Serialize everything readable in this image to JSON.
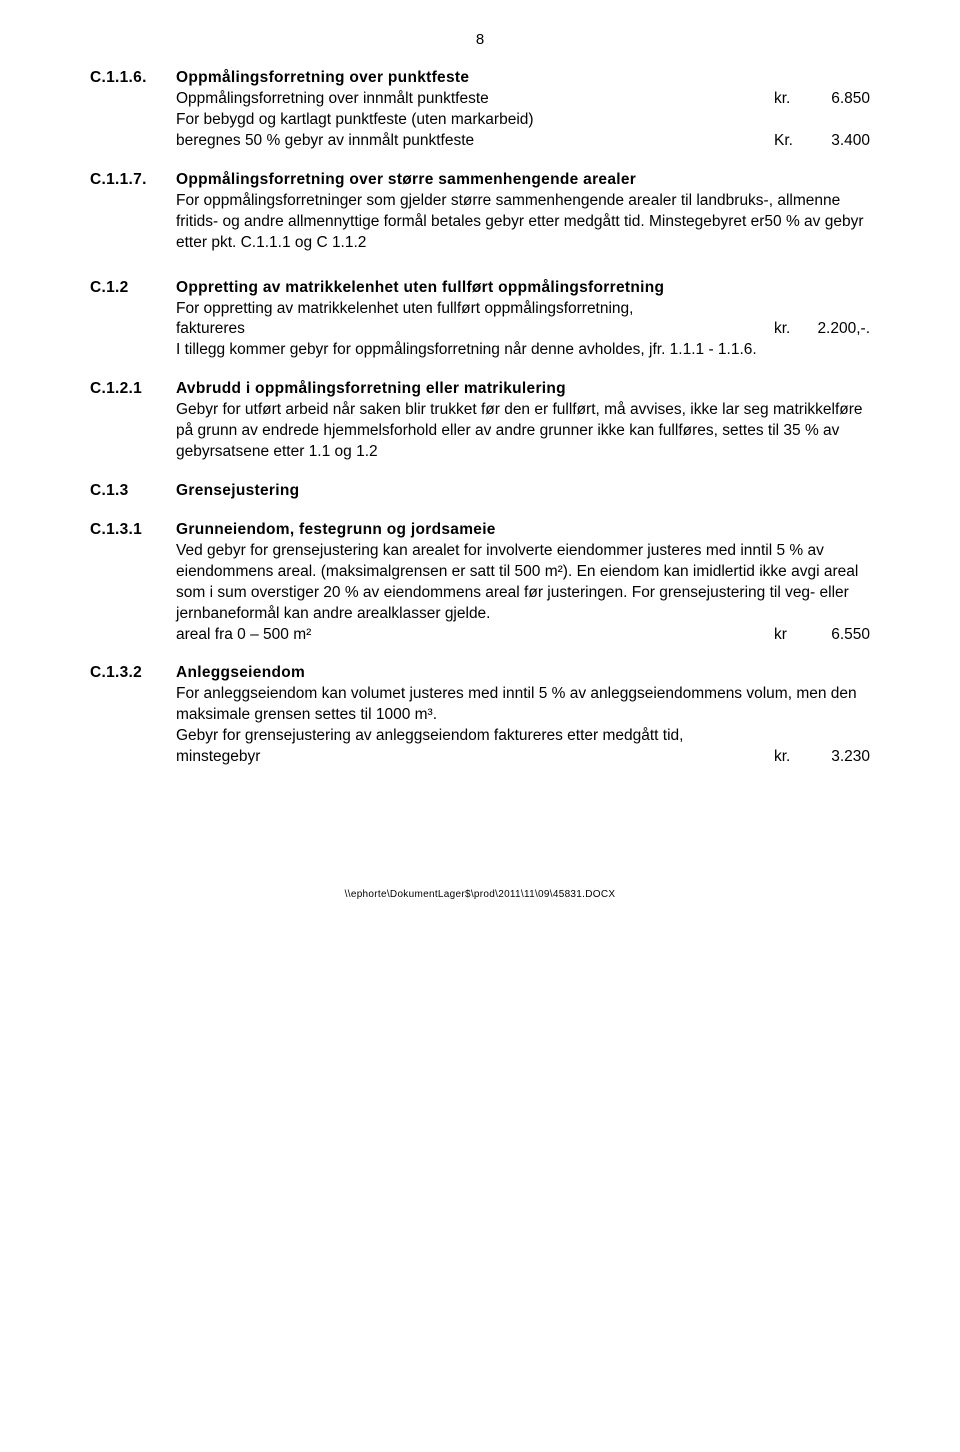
{
  "pageNumber": "8",
  "sections": {
    "c116": {
      "num": "C.1.1.6.",
      "title": "Oppmålingsforretning over punktfeste",
      "line1_text": "Oppmålingsforretning over innmålt punktfeste",
      "line1_cur": "kr.",
      "line1_val": "6.850",
      "line2_text": "For bebygd og kartlagt punktfeste (uten markarbeid)",
      "line3_text": "beregnes 50 % gebyr av innmålt punktfeste",
      "line3_cur": "Kr.",
      "line3_val": "3.400"
    },
    "c117": {
      "num": "C.1.1.7.",
      "title": "Oppmålingsforretning over større sammenhengende arealer",
      "body": "For oppmålingsforretninger som gjelder større sammenhengende arealer til landbruks-, allmenne fritids- og andre allmennyttige formål betales gebyr etter medgått tid. Minstegebyret er50 % av gebyr etter pkt. C.1.1.1 og C 1.1.2"
    },
    "c12": {
      "num": "C.1.2",
      "title": "Oppretting av matrikkelenhet uten fullført oppmålingsforretning",
      "line1": "For oppretting av matrikkelenhet uten fullført oppmålingsforretning,",
      "line2_text": "faktureres",
      "line2_cur": "kr.",
      "line2_val": "2.200,-.",
      "line3": "I tillegg kommer gebyr for oppmålingsforretning når denne avholdes, jfr. 1.1.1 - 1.1.6."
    },
    "c121": {
      "num": "C.1.2.1",
      "title": "Avbrudd i oppmålingsforretning eller matrikulering",
      "body": "Gebyr for utført arbeid når saken blir trukket før den er fullført, må avvises, ikke lar seg matrikkelføre på grunn av endrede hjemmelsforhold eller av andre grunner ikke kan fullføres, settes til 35 % av gebyrsatsene etter 1.1 og 1.2"
    },
    "c13": {
      "num": "C.1.3",
      "title": "Grensejustering"
    },
    "c131": {
      "num": "C.1.3.1",
      "title": "Grunneiendom, festegrunn og jordsameie",
      "body": "Ved gebyr for grensejustering kan arealet for involverte eiendommer justeres med inntil 5 % av eiendommens areal. (maksimalgrensen er satt til 500 m²).  En eiendom kan imidlertid ikke avgi areal som i sum overstiger 20 % av eiendommens areal før justeringen.  For grensejustering til veg- eller jernbaneformål kan andre arealklasser gjelde.",
      "line_text": "areal fra 0 – 500 m²",
      "line_cur": "kr",
      "line_val": "6.550"
    },
    "c132": {
      "num": "C.1.3.2",
      "title": "Anleggseiendom",
      "body1": "For anleggseiendom kan volumet justeres med inntil 5 % av anleggseiendommens volum, men den maksimale grensen settes til 1000 m³.",
      "body2": "Gebyr for grensejustering av anleggseiendom faktureres etter medgått tid,",
      "line_text": "minstegebyr",
      "line_cur": "kr.",
      "line_val": "3.230"
    }
  },
  "footer": "\\\\ephorte\\DokumentLager$\\prod\\2011\\11\\09\\45831.DOCX"
}
